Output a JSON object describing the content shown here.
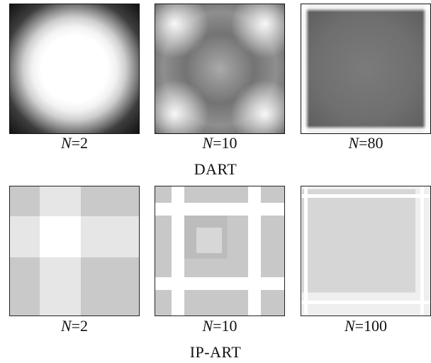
{
  "figure": {
    "dart": {
      "label": "DART",
      "panels": [
        {
          "n_label": "N",
          "eq": "=2"
        },
        {
          "n_label": "N",
          "eq": "=10"
        },
        {
          "n_label": "N",
          "eq": "=80"
        }
      ]
    },
    "ipart": {
      "label": "IP-ART",
      "panels": [
        {
          "n_label": "N",
          "eq": "=2"
        },
        {
          "n_label": "N",
          "eq": "=10"
        },
        {
          "n_label": "N",
          "eq": "=100"
        }
      ]
    }
  }
}
